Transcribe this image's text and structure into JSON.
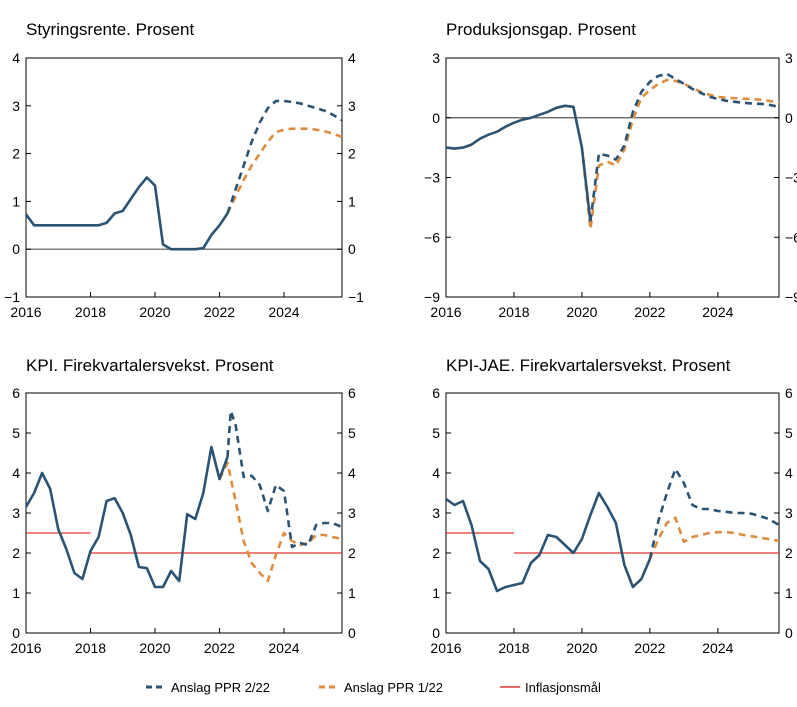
{
  "chart_data": [
    {
      "type": "line",
      "title": "Styringsrente. Prosent",
      "ylim": [
        -1,
        4
      ],
      "yticks": [
        "−1",
        "0",
        "1",
        "2",
        "3",
        "4"
      ],
      "yticks_values": [
        -1,
        0,
        1,
        2,
        3,
        4
      ],
      "xlim": [
        2016,
        2025.8
      ],
      "xticks": [
        "2016",
        "2018",
        "2020",
        "2022",
        "2024"
      ],
      "xticks_values": [
        2016,
        2018,
        2020,
        2022,
        2024
      ],
      "zero_line": true,
      "series": [
        {
          "key": "hist",
          "style": "hist",
          "x": [
            2016.0,
            2016.25,
            2016.5,
            2016.75,
            2017.0,
            2017.25,
            2017.5,
            2017.75,
            2018.0,
            2018.25,
            2018.5,
            2018.75,
            2019.0,
            2019.25,
            2019.5,
            2019.75,
            2020.0,
            2020.25,
            2020.5,
            2020.75,
            2021.0,
            2021.25,
            2021.5,
            2021.75,
            2022.0,
            2022.25
          ],
          "y": [
            0.73,
            0.5,
            0.5,
            0.5,
            0.5,
            0.5,
            0.5,
            0.5,
            0.5,
            0.5,
            0.55,
            0.75,
            0.8,
            1.05,
            1.3,
            1.5,
            1.33,
            0.1,
            0.0,
            0.0,
            0.0,
            0.0,
            0.02,
            0.3,
            0.5,
            0.75
          ]
        },
        {
          "key": "ppr2",
          "style": "ppr2",
          "x": [
            2022.25,
            2022.5,
            2022.75,
            2023.0,
            2023.25,
            2023.5,
            2023.75,
            2024.0,
            2024.25,
            2024.5,
            2024.75,
            2025.0,
            2025.25,
            2025.5,
            2025.8
          ],
          "y": [
            0.75,
            1.25,
            1.75,
            2.25,
            2.65,
            2.95,
            3.1,
            3.1,
            3.08,
            3.05,
            3.0,
            2.95,
            2.9,
            2.82,
            2.7
          ]
        },
        {
          "key": "ppr1",
          "style": "ppr1",
          "x": [
            2022.25,
            2022.5,
            2022.75,
            2023.0,
            2023.25,
            2023.5,
            2023.75,
            2024.0,
            2024.25,
            2024.5,
            2024.75,
            2025.0,
            2025.25,
            2025.5,
            2025.8
          ],
          "y": [
            0.75,
            1.1,
            1.45,
            1.75,
            2.0,
            2.25,
            2.45,
            2.5,
            2.52,
            2.52,
            2.52,
            2.5,
            2.47,
            2.42,
            2.35
          ]
        }
      ]
    },
    {
      "type": "line",
      "title": "Produksjonsgap. Prosent",
      "ylim": [
        -9,
        3
      ],
      "yticks": [
        "−9",
        "−6",
        "−3",
        "0",
        "3"
      ],
      "yticks_values": [
        -9,
        -6,
        -3,
        0,
        3
      ],
      "xlim": [
        2016,
        2025.8
      ],
      "xticks": [
        "2016",
        "2018",
        "2020",
        "2022",
        "2024"
      ],
      "xticks_values": [
        2016,
        2018,
        2020,
        2022,
        2024
      ],
      "zero_line": true,
      "series": [
        {
          "key": "hist",
          "style": "hist",
          "x": [
            2016.0,
            2016.25,
            2016.5,
            2016.75,
            2017.0,
            2017.25,
            2017.5,
            2017.75,
            2018.0,
            2018.25,
            2018.5,
            2018.75,
            2019.0,
            2019.25,
            2019.5,
            2019.75,
            2020.0,
            2020.25
          ],
          "y": [
            -1.5,
            -1.55,
            -1.5,
            -1.35,
            -1.05,
            -0.85,
            -0.7,
            -0.45,
            -0.25,
            -0.1,
            0.0,
            0.15,
            0.3,
            0.5,
            0.6,
            0.55,
            -1.5,
            -5.2
          ]
        },
        {
          "key": "ppr2",
          "style": "ppr2",
          "x": [
            2020.25,
            2020.5,
            2020.75,
            2021.0,
            2021.25,
            2021.5,
            2021.75,
            2022.0,
            2022.25,
            2022.5,
            2022.75,
            2023.0,
            2023.25,
            2023.5,
            2023.75,
            2024.0,
            2024.25,
            2024.5,
            2024.75,
            2025.0,
            2025.25,
            2025.5,
            2025.8
          ],
          "y": [
            -5.2,
            -1.8,
            -1.9,
            -2.1,
            -1.4,
            0.3,
            1.3,
            1.8,
            2.1,
            2.2,
            1.95,
            1.7,
            1.45,
            1.25,
            1.05,
            0.95,
            0.85,
            0.8,
            0.75,
            0.72,
            0.7,
            0.65,
            0.55
          ]
        },
        {
          "key": "ppr1",
          "style": "ppr1",
          "x": [
            2020.0,
            2020.25,
            2020.5,
            2020.75,
            2021.0,
            2021.25,
            2021.5,
            2021.75,
            2022.0,
            2022.25,
            2022.5,
            2022.75,
            2023.0,
            2023.25,
            2023.5,
            2023.75,
            2024.0,
            2024.25,
            2024.5,
            2024.75,
            2025.0,
            2025.25,
            2025.5,
            2025.8
          ],
          "y": [
            -1.5,
            -5.6,
            -2.4,
            -2.2,
            -2.4,
            -1.6,
            -0.1,
            1.0,
            1.4,
            1.7,
            1.9,
            1.85,
            1.7,
            1.5,
            1.3,
            1.15,
            1.05,
            1.0,
            0.98,
            0.95,
            0.95,
            0.9,
            0.85,
            0.75
          ]
        }
      ]
    },
    {
      "type": "line",
      "title": "KPI. Firekvartalersvekst. Prosent",
      "ylim": [
        0,
        6
      ],
      "yticks": [
        "0",
        "1",
        "2",
        "3",
        "4",
        "5",
        "6"
      ],
      "yticks_values": [
        0,
        1,
        2,
        3,
        4,
        5,
        6
      ],
      "xlim": [
        2016,
        2025.8
      ],
      "xticks": [
        "2016",
        "2018",
        "2020",
        "2022",
        "2024"
      ],
      "xticks_values": [
        2016,
        2018,
        2020,
        2022,
        2024
      ],
      "zero_line": false,
      "series": [
        {
          "key": "target",
          "style": "target",
          "x": [
            2016.0,
            2018.0
          ],
          "y": [
            2.5,
            2.5
          ]
        },
        {
          "key": "target",
          "style": "target",
          "x": [
            2018.0,
            2025.8
          ],
          "y": [
            2.0,
            2.0
          ]
        },
        {
          "key": "hist",
          "style": "hist",
          "x": [
            2016.0,
            2016.25,
            2016.5,
            2016.75,
            2017.0,
            2017.25,
            2017.5,
            2017.75,
            2018.0,
            2018.25,
            2018.5,
            2018.75,
            2019.0,
            2019.25,
            2019.5,
            2019.75,
            2020.0,
            2020.25,
            2020.5,
            2020.75,
            2021.0,
            2021.25,
            2021.5,
            2021.75,
            2022.0,
            2022.25
          ],
          "y": [
            3.15,
            3.5,
            4.0,
            3.6,
            2.6,
            2.1,
            1.5,
            1.35,
            2.05,
            2.4,
            3.3,
            3.37,
            3.0,
            2.45,
            1.65,
            1.62,
            1.15,
            1.15,
            1.55,
            1.3,
            2.97,
            2.85,
            3.5,
            4.65,
            3.85,
            4.4
          ]
        },
        {
          "key": "ppr2",
          "style": "ppr2",
          "x": [
            2022.25,
            2022.35,
            2022.5,
            2022.75,
            2023.0,
            2023.25,
            2023.5,
            2023.75,
            2024.0,
            2024.25,
            2024.5,
            2024.75,
            2025.0,
            2025.25,
            2025.5,
            2025.8
          ],
          "y": [
            4.4,
            5.55,
            5.2,
            3.9,
            3.93,
            3.7,
            3.05,
            3.7,
            3.55,
            2.15,
            2.25,
            2.2,
            2.7,
            2.75,
            2.75,
            2.65
          ]
        },
        {
          "key": "ppr1",
          "style": "ppr1",
          "x": [
            2022.0,
            2022.25,
            2022.5,
            2022.75,
            2023.0,
            2023.25,
            2023.5,
            2023.75,
            2024.0,
            2024.25,
            2024.5,
            2024.75,
            2025.0,
            2025.25,
            2025.5,
            2025.8
          ],
          "y": [
            3.85,
            4.25,
            3.3,
            2.3,
            1.75,
            1.5,
            1.3,
            1.95,
            2.5,
            2.3,
            2.2,
            2.25,
            2.45,
            2.45,
            2.4,
            2.35
          ]
        }
      ]
    },
    {
      "type": "line",
      "title": "KPI-JAE. Firekvartalersvekst. Prosent",
      "ylim": [
        0,
        6
      ],
      "yticks": [
        "0",
        "1",
        "2",
        "3",
        "4",
        "5",
        "6"
      ],
      "yticks_values": [
        0,
        1,
        2,
        3,
        4,
        5,
        6
      ],
      "xlim": [
        2016,
        2025.8
      ],
      "xticks": [
        "2016",
        "2018",
        "2020",
        "2022",
        "2024"
      ],
      "xticks_values": [
        2016,
        2018,
        2020,
        2022,
        2024
      ],
      "zero_line": false,
      "series": [
        {
          "key": "target",
          "style": "target",
          "x": [
            2016.0,
            2018.0
          ],
          "y": [
            2.5,
            2.5
          ]
        },
        {
          "key": "target",
          "style": "target",
          "x": [
            2018.0,
            2025.8
          ],
          "y": [
            2.0,
            2.0
          ]
        },
        {
          "key": "hist",
          "style": "hist",
          "x": [
            2016.0,
            2016.25,
            2016.5,
            2016.75,
            2017.0,
            2017.25,
            2017.5,
            2017.75,
            2018.0,
            2018.25,
            2018.5,
            2018.75,
            2019.0,
            2019.25,
            2019.5,
            2019.75,
            2020.0,
            2020.25,
            2020.5,
            2020.75,
            2021.0,
            2021.25,
            2021.5,
            2021.75,
            2022.0
          ],
          "y": [
            3.35,
            3.2,
            3.3,
            2.7,
            1.8,
            1.6,
            1.05,
            1.15,
            1.2,
            1.25,
            1.75,
            1.95,
            2.45,
            2.4,
            2.2,
            2.0,
            2.35,
            2.95,
            3.5,
            3.15,
            2.75,
            1.7,
            1.15,
            1.35,
            1.85
          ]
        },
        {
          "key": "ppr2",
          "style": "ppr2",
          "x": [
            2022.0,
            2022.25,
            2022.5,
            2022.75,
            2023.0,
            2023.25,
            2023.5,
            2023.75,
            2024.0,
            2024.25,
            2024.5,
            2024.75,
            2025.0,
            2025.25,
            2025.5,
            2025.8
          ],
          "y": [
            1.85,
            2.8,
            3.5,
            4.1,
            3.75,
            3.2,
            3.1,
            3.1,
            3.05,
            3.03,
            3.0,
            3.0,
            2.98,
            2.92,
            2.85,
            2.7
          ]
        },
        {
          "key": "ppr1",
          "style": "ppr1",
          "x": [
            2022.0,
            2022.25,
            2022.5,
            2022.75,
            2023.0,
            2023.25,
            2023.5,
            2023.75,
            2024.0,
            2024.25,
            2024.5,
            2024.75,
            2025.0,
            2025.25,
            2025.5,
            2025.8
          ],
          "y": [
            1.85,
            2.35,
            2.75,
            2.88,
            2.28,
            2.4,
            2.45,
            2.5,
            2.52,
            2.52,
            2.5,
            2.45,
            2.42,
            2.38,
            2.35,
            2.3
          ]
        }
      ]
    }
  ],
  "legend": {
    "ppr2_label": "Anslag PPR 2/22",
    "ppr1_label": "Anslag PPR 1/22",
    "target_label": "Inflasjonsmål"
  },
  "colors": {
    "hist": "#2b5374",
    "ppr2": "#2b5374",
    "ppr1": "#de8c3e",
    "target": "#e0362c",
    "axis": "#000000"
  }
}
